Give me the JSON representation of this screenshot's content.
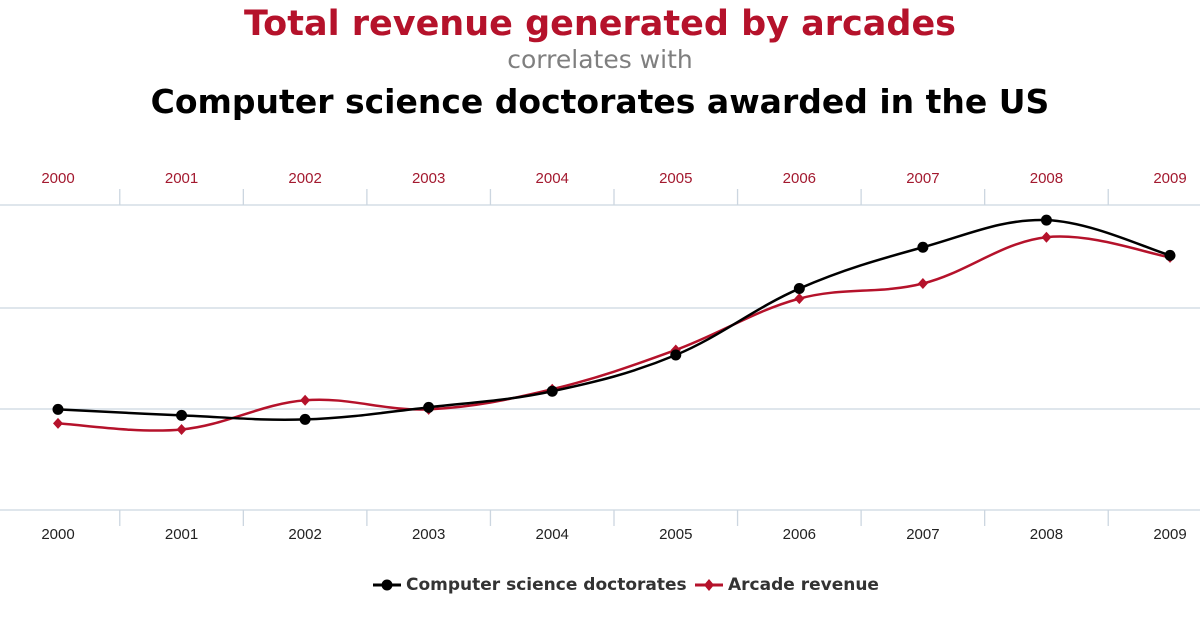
{
  "header": {
    "title": "Total revenue generated by arcades",
    "subtitle": "correlates with",
    "second_title": "Computer science doctorates awarded in the US"
  },
  "colors": {
    "arcade": "#b5122b",
    "doctorates": "#000000",
    "grid": "#ccd6e0",
    "top_tick": "#a3192f",
    "bottom_tick": "#222222"
  },
  "chart_data": {
    "type": "line",
    "title": "Total revenue generated by arcades",
    "subtitle": "correlates with",
    "x": [
      "2000",
      "2001",
      "2002",
      "2003",
      "2004",
      "2005",
      "2006",
      "2007",
      "2008",
      "2009"
    ],
    "x_top_ticks": [
      "2000",
      "2001",
      "2002",
      "2003",
      "2004",
      "2005",
      "2006",
      "2007",
      "2008",
      "2009"
    ],
    "x_bottom_ticks": [
      "2000",
      "2001",
      "2002",
      "2003",
      "2004",
      "2005",
      "2006",
      "2007",
      "2008",
      "2009"
    ],
    "y_axis_labels_shown": false,
    "grid": true,
    "legend_position": "bottom-center",
    "series": [
      {
        "name": "Computer science doctorates",
        "color": "#000000",
        "marker": "circle",
        "values": [
          0.72,
          0.66,
          0.62,
          0.74,
          0.9,
          1.26,
          1.92,
          2.33,
          2.6,
          2.25
        ]
      },
      {
        "name": "Arcade revenue",
        "color": "#b5122b",
        "marker": "diamond",
        "values": [
          0.58,
          0.52,
          0.81,
          0.72,
          0.92,
          1.31,
          1.82,
          1.97,
          2.43,
          2.23
        ]
      }
    ],
    "ylim": [
      -0.28,
      2.75
    ]
  }
}
